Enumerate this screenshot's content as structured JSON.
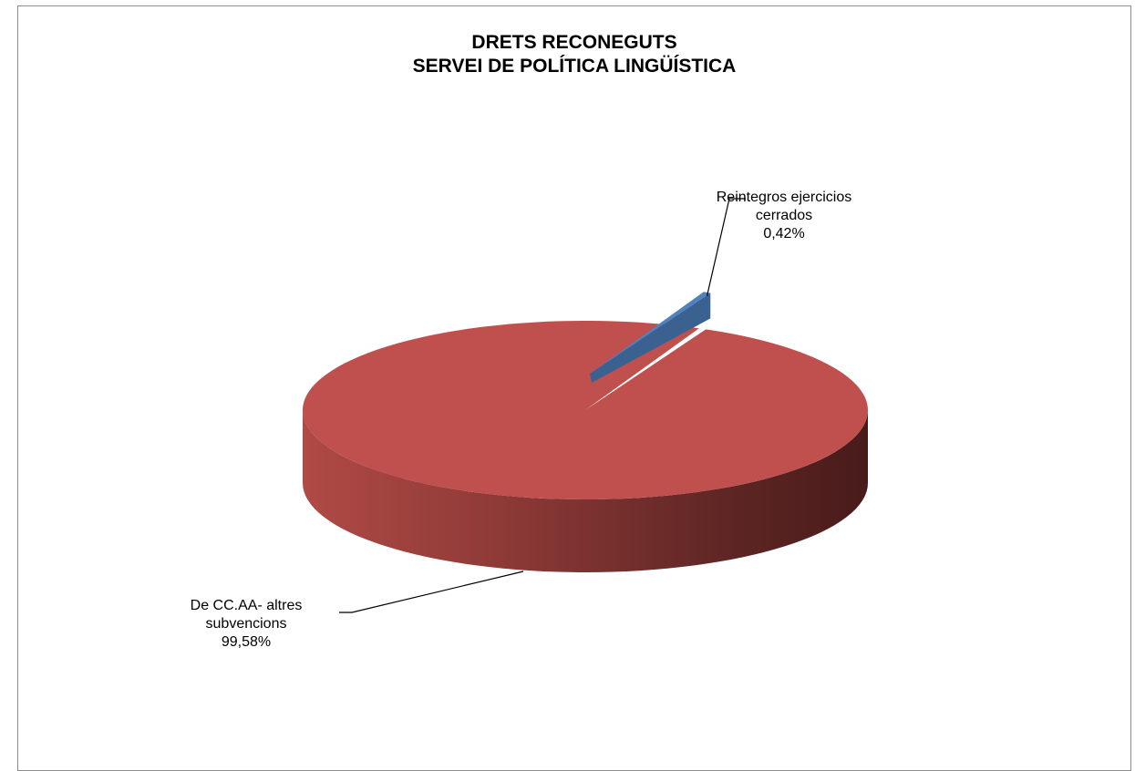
{
  "chart_data": {
    "type": "pie",
    "title": [
      "DRETS RECONEGUTS",
      "SERVEI DE POLÍTICA LINGÜÍSTICA"
    ],
    "slices": [
      {
        "label_lines": [
          "Reintegros ejercicios",
          "cerrados"
        ],
        "pct_label": "0,42%",
        "value": 0.42,
        "color": "#4F81BD"
      },
      {
        "label_lines": [
          "De CC.AA- altres",
          "subvencions"
        ],
        "pct_label": "99,58%",
        "value": 99.58,
        "color": "#C0504D"
      }
    ],
    "style": "3d",
    "legend": "none"
  }
}
